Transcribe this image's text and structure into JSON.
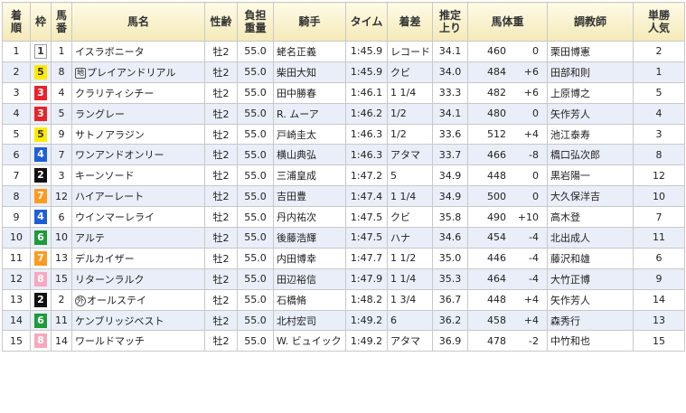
{
  "headers": {
    "rank": "着順",
    "waku": "枠",
    "umaban": "馬番",
    "horse": "馬名",
    "sex_age": "性齢",
    "weight_carried": "負担重量",
    "jockey": "騎手",
    "time": "タイム",
    "margin": "着差",
    "last3f": "推定上り",
    "body_weight": "馬体重",
    "trainer": "調教師",
    "popularity": "単勝人気"
  },
  "colors": {
    "header_bg": "#f4e9b8",
    "row_alt": "#e9eef8",
    "waku": {
      "1": "#ffffff",
      "2": "#111111",
      "3": "#e8232a",
      "4": "#1f5fd6",
      "5": "#ffea00",
      "6": "#1e9b3a",
      "7": "#ff9a1f",
      "8": "#f7a8c0"
    }
  },
  "rows": [
    {
      "rank": "1",
      "waku": "1",
      "umaban": "1",
      "mark": "",
      "horse": "イスラボニータ",
      "sex_age": "牡2",
      "kg": "55.0",
      "jockey": "蛯名正義",
      "time": "1:45.9",
      "margin": "レコード",
      "last3f": "34.1",
      "body": "460",
      "diff": "0",
      "trainer": "栗田博憲",
      "pop": "2"
    },
    {
      "rank": "2",
      "waku": "5",
      "umaban": "8",
      "mark": "地",
      "horse": "プレイアンドリアル",
      "sex_age": "牡2",
      "kg": "55.0",
      "jockey": "柴田大知",
      "time": "1:45.9",
      "margin": "クビ",
      "last3f": "34.0",
      "body": "484",
      "diff": "+6",
      "trainer": "田部和則",
      "pop": "1"
    },
    {
      "rank": "3",
      "waku": "3",
      "umaban": "4",
      "mark": "",
      "horse": "クラリティシチー",
      "sex_age": "牡2",
      "kg": "55.0",
      "jockey": "田中勝春",
      "time": "1:46.1",
      "margin": "1 1/4",
      "last3f": "33.3",
      "body": "482",
      "diff": "+6",
      "trainer": "上原博之",
      "pop": "5"
    },
    {
      "rank": "4",
      "waku": "3",
      "umaban": "5",
      "mark": "",
      "horse": "ラングレー",
      "sex_age": "牡2",
      "kg": "55.0",
      "jockey": "R. ムーア",
      "time": "1:46.2",
      "margin": "1/2",
      "last3f": "34.1",
      "body": "480",
      "diff": "0",
      "trainer": "矢作芳人",
      "pop": "4"
    },
    {
      "rank": "5",
      "waku": "5",
      "umaban": "9",
      "mark": "",
      "horse": "サトノアラジン",
      "sex_age": "牡2",
      "kg": "55.0",
      "jockey": "戸崎圭太",
      "time": "1:46.3",
      "margin": "1/2",
      "last3f": "33.6",
      "body": "512",
      "diff": "+4",
      "trainer": "池江泰寿",
      "pop": "3"
    },
    {
      "rank": "6",
      "waku": "4",
      "umaban": "7",
      "mark": "",
      "horse": "ワンアンドオンリー",
      "sex_age": "牡2",
      "kg": "55.0",
      "jockey": "横山典弘",
      "time": "1:46.3",
      "margin": "アタマ",
      "last3f": "33.7",
      "body": "466",
      "diff": "-8",
      "trainer": "橋口弘次郎",
      "pop": "8"
    },
    {
      "rank": "7",
      "waku": "2",
      "umaban": "3",
      "mark": "",
      "horse": "キーンソード",
      "sex_age": "牡2",
      "kg": "55.0",
      "jockey": "三浦皇成",
      "time": "1:47.2",
      "margin": "5",
      "last3f": "34.9",
      "body": "448",
      "diff": "0",
      "trainer": "黒岩陽一",
      "pop": "12"
    },
    {
      "rank": "8",
      "waku": "7",
      "umaban": "12",
      "mark": "",
      "horse": "ハイアーレート",
      "sex_age": "牡2",
      "kg": "55.0",
      "jockey": "吉田豊",
      "time": "1:47.4",
      "margin": "1 1/4",
      "last3f": "34.9",
      "body": "500",
      "diff": "0",
      "trainer": "大久保洋吉",
      "pop": "10"
    },
    {
      "rank": "9",
      "waku": "4",
      "umaban": "6",
      "mark": "",
      "horse": "ウインマーレライ",
      "sex_age": "牡2",
      "kg": "55.0",
      "jockey": "丹内祐次",
      "time": "1:47.5",
      "margin": "クビ",
      "last3f": "35.8",
      "body": "490",
      "diff": "+10",
      "trainer": "高木登",
      "pop": "7"
    },
    {
      "rank": "10",
      "waku": "6",
      "umaban": "10",
      "mark": "",
      "horse": "アルテ",
      "sex_age": "牡2",
      "kg": "55.0",
      "jockey": "後藤浩輝",
      "time": "1:47.5",
      "margin": "ハナ",
      "last3f": "34.6",
      "body": "454",
      "diff": "-4",
      "trainer": "北出成人",
      "pop": "11"
    },
    {
      "rank": "11",
      "waku": "7",
      "umaban": "13",
      "mark": "",
      "horse": "デルカイザー",
      "sex_age": "牡2",
      "kg": "55.0",
      "jockey": "内田博幸",
      "time": "1:47.7",
      "margin": "1 1/2",
      "last3f": "35.0",
      "body": "446",
      "diff": "-4",
      "trainer": "藤沢和雄",
      "pop": "6"
    },
    {
      "rank": "12",
      "waku": "8",
      "umaban": "15",
      "mark": "",
      "horse": "リターンラルク",
      "sex_age": "牡2",
      "kg": "55.0",
      "jockey": "田辺裕信",
      "time": "1:47.9",
      "margin": "1 1/4",
      "last3f": "35.3",
      "body": "464",
      "diff": "-4",
      "trainer": "大竹正博",
      "pop": "9"
    },
    {
      "rank": "13",
      "waku": "2",
      "umaban": "2",
      "mark": "外",
      "horse": "オールステイ",
      "sex_age": "牡2",
      "kg": "55.0",
      "jockey": "石橋脩",
      "time": "1:48.2",
      "margin": "1 3/4",
      "last3f": "36.7",
      "body": "448",
      "diff": "+4",
      "trainer": "矢作芳人",
      "pop": "14"
    },
    {
      "rank": "14",
      "waku": "6",
      "umaban": "11",
      "mark": "",
      "horse": "ケンブリッジベスト",
      "sex_age": "牡2",
      "kg": "55.0",
      "jockey": "北村宏司",
      "time": "1:49.2",
      "margin": "6",
      "last3f": "36.2",
      "body": "458",
      "diff": "+4",
      "trainer": "森秀行",
      "pop": "13"
    },
    {
      "rank": "15",
      "waku": "8",
      "umaban": "14",
      "mark": "",
      "horse": "ワールドマッチ",
      "sex_age": "牡2",
      "kg": "55.0",
      "jockey": "W. ビュイック",
      "time": "1:49.2",
      "margin": "アタマ",
      "last3f": "36.9",
      "body": "478",
      "diff": "-2",
      "trainer": "中竹和也",
      "pop": "15"
    }
  ]
}
